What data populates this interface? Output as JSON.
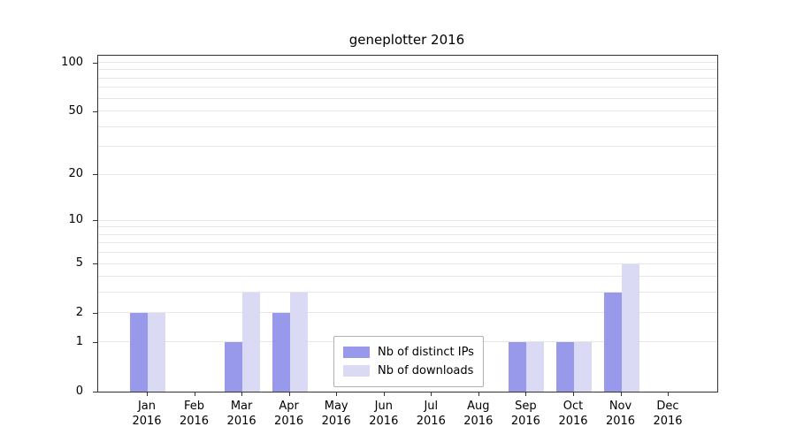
{
  "chart_data": {
    "type": "bar",
    "title": "geneplotter 2016",
    "categories": [
      "Jan 2016",
      "Feb 2016",
      "Mar 2016",
      "Apr 2016",
      "May 2016",
      "Jun 2016",
      "Jul 2016",
      "Aug 2016",
      "Sep 2016",
      "Oct 2016",
      "Nov 2016",
      "Dec 2016"
    ],
    "series": [
      {
        "name": "Nb of distinct IPs",
        "color": "#9999ec",
        "values": [
          2,
          0,
          1,
          2,
          0,
          0,
          0,
          0,
          1,
          1,
          3,
          0
        ]
      },
      {
        "name": "Nb of downloads",
        "color": "#dadaf5",
        "values": [
          2,
          0,
          3,
          3,
          0,
          0,
          0,
          0,
          1,
          1,
          5,
          0
        ]
      }
    ],
    "xlabel": "",
    "ylabel": "",
    "y_scale": "log1p",
    "ylim": [
      0,
      110
    ],
    "y_ticks": [
      0,
      1,
      2,
      5,
      10,
      20,
      50,
      100
    ],
    "y_gridlines": [
      1,
      2,
      3,
      4,
      5,
      6,
      7,
      8,
      9,
      10,
      20,
      30,
      40,
      50,
      60,
      70,
      80,
      90,
      100
    ],
    "grid": "horizontal",
    "legend_position": "bottom-center-inside"
  }
}
